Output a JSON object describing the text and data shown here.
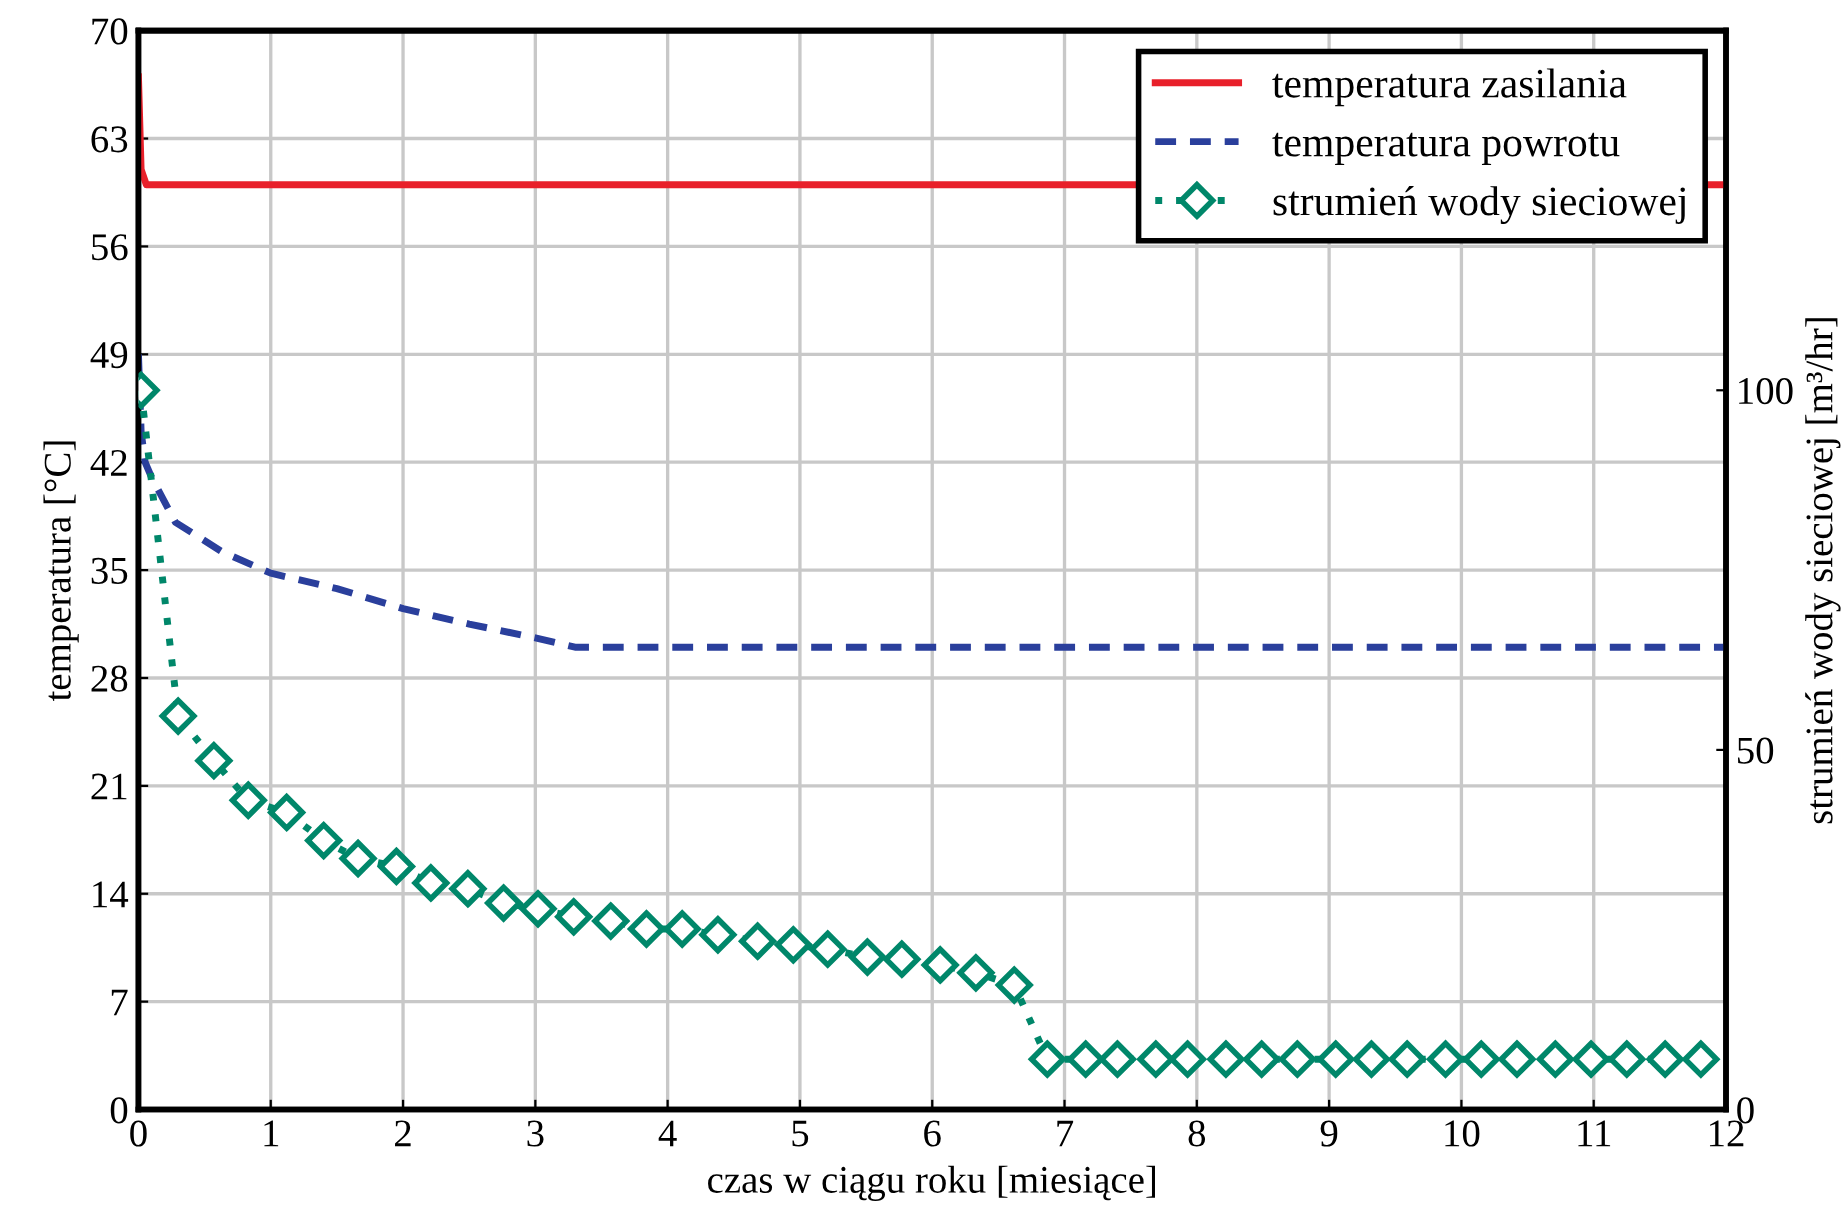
{
  "chart_data": {
    "type": "line",
    "xlabel": "czas w ciągu roku [miesiące]",
    "ylabel": "temperatura [°C]",
    "y2label": "strumień wody sieciowej [m³/hr]",
    "xlim": [
      0,
      12
    ],
    "xticks": [
      0,
      1,
      2,
      3,
      4,
      5,
      6,
      7,
      8,
      9,
      10,
      11,
      12
    ],
    "ylim": [
      0,
      70
    ],
    "yticks": [
      0,
      7,
      14,
      21,
      28,
      35,
      42,
      49,
      56,
      63,
      70
    ],
    "y2lim": [
      0,
      150
    ],
    "y2ticks": [
      0,
      50,
      100
    ],
    "grid": true,
    "legend": "top right",
    "series": [
      {
        "name": "temperatura zasilania",
        "color": "#e8202a",
        "line_style": "solid",
        "marker": "none",
        "x": [
          0,
          0.02,
          0.06,
          12
        ],
        "values": [
          67,
          61,
          60,
          60
        ]
      },
      {
        "name": "temperatura powrotu",
        "color": "#2a3f9c",
        "line_style": "dashed",
        "marker": "none",
        "x": [
          0,
          0.02,
          0.05,
          0.1,
          0.28,
          0.63,
          1,
          1.5,
          2,
          2.5,
          3,
          3.3,
          12
        ],
        "values": [
          49,
          44,
          42,
          41,
          38.1,
          36.2,
          34.8,
          33.8,
          32.5,
          31.5,
          30.6,
          30,
          30
        ]
      },
      {
        "name": "strumień wody sieciowej",
        "color": "#00876a",
        "line_style": "dotted",
        "marker": "diamond",
        "axis": "y2",
        "x": [
          0.02,
          0.3,
          0.57,
          0.83,
          1.12,
          1.4,
          1.66,
          1.95,
          2.21,
          2.49,
          2.76,
          3.02,
          3.29,
          3.57,
          3.84,
          4.11,
          4.38,
          4.68,
          4.95,
          5.21,
          5.51,
          5.77,
          6.06,
          6.33,
          6.62,
          6.87,
          7.16,
          7.4,
          7.69,
          7.93,
          8.22,
          8.49,
          8.76,
          9.05,
          9.32,
          9.59,
          9.88,
          10.15,
          10.42,
          10.71,
          10.98,
          11.25,
          11.54,
          11.81
        ],
        "values": [
          100,
          54.7,
          48.5,
          43,
          41.3,
          37.4,
          34.9,
          33.8,
          31.5,
          30.7,
          28.7,
          27.9,
          26.8,
          26.2,
          25.1,
          25.1,
          24.3,
          23.4,
          22.9,
          22.3,
          21.2,
          20.9,
          20.1,
          19,
          17.3,
          7,
          7,
          7,
          7,
          7,
          7,
          7,
          7,
          7,
          7,
          7,
          7,
          7,
          7,
          7,
          7,
          7,
          7,
          7
        ]
      }
    ]
  }
}
